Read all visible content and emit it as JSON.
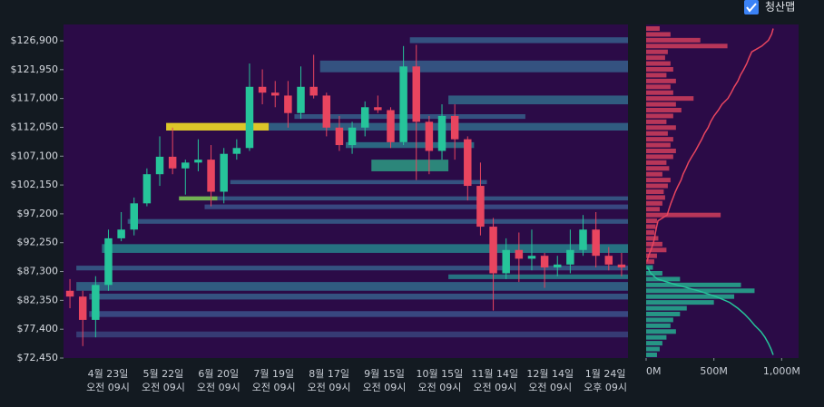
{
  "chart_data": {
    "type": "candlestick",
    "legend_toggle": {
      "label": "청산맵",
      "checked": true
    },
    "ylim": [
      72450,
      129700
    ],
    "yticks": [
      {
        "value": 126900,
        "label": "$126,900"
      },
      {
        "value": 121950,
        "label": "$121,950"
      },
      {
        "value": 117000,
        "label": "$117,000"
      },
      {
        "value": 112050,
        "label": "$112,050"
      },
      {
        "value": 107100,
        "label": "$107,100"
      },
      {
        "value": 102150,
        "label": "$102,150"
      },
      {
        "value": 97200,
        "label": "$97,200"
      },
      {
        "value": 92250,
        "label": "$92,250"
      },
      {
        "value": 87300,
        "label": "$87,300"
      },
      {
        "value": 82350,
        "label": "$82,350"
      },
      {
        "value": 77400,
        "label": "$77,400"
      },
      {
        "value": 72450,
        "label": "$72,450"
      }
    ],
    "xtick_labels": [
      [
        "4월 23일",
        "오전 09시"
      ],
      [
        "5월 22일",
        "오전 09시"
      ],
      [
        "6월 20일",
        "오전 09시"
      ],
      [
        "7월 19일",
        "오전 09시"
      ],
      [
        "8월 17일",
        "오전 09시"
      ],
      [
        "9월 15일",
        "오전 09시"
      ],
      [
        "10월 15일",
        "오전 09시"
      ],
      [
        "11월 14일",
        "오전 09시"
      ],
      [
        "12월 14일",
        "오전 09시"
      ],
      [
        "1월 24일",
        "오후 09시"
      ]
    ],
    "up_color": "#26c49a",
    "down_color": "#e8455f",
    "open": [
      84000,
      83000,
      79000,
      85000,
      93000,
      94500,
      99000,
      104000,
      107000,
      105000,
      106000,
      106500,
      101000,
      107500,
      108500,
      119000,
      118000,
      117500,
      114500,
      119000,
      117500,
      112000,
      109000,
      112000,
      115500,
      115000,
      109500,
      122500,
      113000,
      108000,
      114000,
      110000,
      102000,
      95000,
      87000,
      91000,
      89500,
      90000,
      88000,
      88500,
      91000,
      94500,
      90000,
      88500
    ],
    "high": [
      86000,
      84000,
      86500,
      94500,
      97500,
      100000,
      105000,
      110500,
      112000,
      106500,
      110000,
      109000,
      108500,
      110000,
      123000,
      122000,
      120000,
      120000,
      122500,
      124500,
      118000,
      114000,
      113000,
      116500,
      117500,
      115500,
      126000,
      126200,
      114000,
      116000,
      116000,
      110500,
      106000,
      96500,
      93000,
      94000,
      94500,
      90500,
      90000,
      94500,
      97000,
      97500,
      91500,
      90500
    ],
    "low": [
      81000,
      74500,
      76000,
      84000,
      92500,
      93500,
      98500,
      102000,
      104000,
      100500,
      104500,
      98500,
      99000,
      106500,
      108000,
      116000,
      115500,
      112000,
      113500,
      117000,
      110500,
      108000,
      107500,
      110500,
      114500,
      108500,
      109000,
      103000,
      104000,
      106500,
      106500,
      99500,
      93500,
      80600,
      86000,
      85500,
      87500,
      84500,
      86500,
      87000,
      90000,
      88000,
      87500,
      86500
    ],
    "close": [
      83000,
      79000,
      85000,
      93000,
      94500,
      99000,
      104000,
      107000,
      105000,
      106000,
      106500,
      101000,
      107500,
      108500,
      119000,
      118000,
      117500,
      114500,
      119000,
      117500,
      112000,
      109000,
      112000,
      115500,
      115000,
      109500,
      122500,
      113000,
      108000,
      114000,
      110000,
      102000,
      95000,
      87000,
      91000,
      89500,
      90000,
      88000,
      88500,
      91000,
      94500,
      90000,
      88500,
      88000
    ],
    "heatmap": {
      "bands": [
        [
          111500,
          112800,
          8,
          16,
          1.0
        ],
        [
          111500,
          112800,
          16,
          44,
          0.35
        ],
        [
          104500,
          106500,
          24,
          30,
          0.55
        ],
        [
          99500,
          100200,
          9,
          12,
          0.8
        ],
        [
          99500,
          100200,
          12,
          44,
          0.3
        ],
        [
          90500,
          92000,
          3,
          44,
          0.45
        ],
        [
          87500,
          88300,
          1,
          44,
          0.3
        ],
        [
          84000,
          85500,
          1,
          44,
          0.35
        ],
        [
          82500,
          83500,
          2,
          44,
          0.3
        ],
        [
          95500,
          96300,
          5,
          44,
          0.3
        ],
        [
          121500,
          123500,
          20,
          44,
          0.3
        ],
        [
          126500,
          127500,
          27,
          44,
          0.3
        ],
        [
          116000,
          117500,
          30,
          44,
          0.35
        ],
        [
          108500,
          109500,
          22,
          32,
          0.4
        ],
        [
          98000,
          98800,
          11,
          44,
          0.25
        ],
        [
          79500,
          80500,
          2,
          44,
          0.25
        ],
        [
          76000,
          77000,
          1,
          44,
          0.2
        ],
        [
          113500,
          114300,
          18,
          36,
          0.3
        ],
        [
          102300,
          103000,
          13,
          33,
          0.3
        ],
        [
          86000,
          86800,
          30,
          44,
          0.45
        ]
      ]
    },
    "liq_map": {
      "xlim": [
        0,
        1125
      ],
      "xticks": [
        {
          "value": 0,
          "label": "0M"
        },
        {
          "value": 500,
          "label": "500M"
        },
        {
          "value": 1000,
          "label": "1,000M"
        }
      ],
      "short": {
        "color": "#e8455f",
        "prices": [
          89000,
          90000,
          91000,
          92000,
          93000,
          94000,
          95000,
          96000,
          97000,
          98000,
          99000,
          100000,
          101000,
          102000,
          103000,
          104000,
          105000,
          106000,
          107000,
          108000,
          109000,
          110000,
          111000,
          112000,
          113000,
          114000,
          115000,
          116000,
          117000,
          118000,
          119000,
          120000,
          121000,
          122000,
          123000,
          124000,
          125000,
          126000,
          127000,
          128000,
          129000
        ],
        "values": [
          60,
          80,
          150,
          120,
          90,
          60,
          70,
          80,
          550,
          100,
          120,
          140,
          130,
          160,
          180,
          120,
          170,
          150,
          200,
          220,
          180,
          200,
          160,
          220,
          150,
          200,
          260,
          220,
          350,
          200,
          180,
          220,
          150,
          200,
          180,
          140,
          160,
          600,
          400,
          180,
          100
        ]
      },
      "long": {
        "color": "#26c49a",
        "prices": [
          88000,
          87000,
          86000,
          85000,
          84000,
          83000,
          82000,
          81000,
          80000,
          79000,
          78000,
          77000,
          76000,
          75000,
          74000,
          73000
        ],
        "values": [
          50,
          120,
          250,
          700,
          800,
          650,
          500,
          300,
          250,
          200,
          180,
          220,
          150,
          120,
          100,
          80
        ]
      }
    }
  }
}
